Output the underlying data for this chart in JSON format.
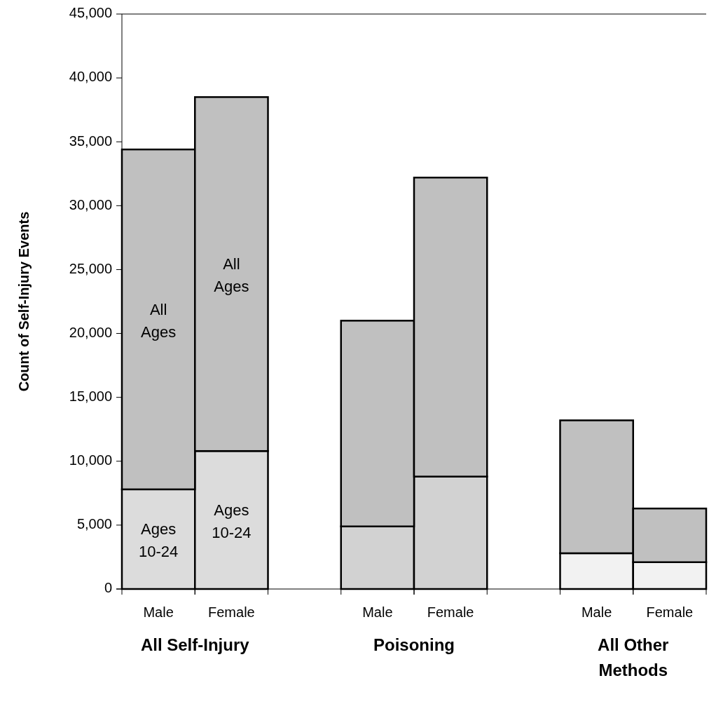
{
  "chart_data": {
    "type": "bar",
    "stacked": true,
    "ylabel": "Count of Self-Injury Events",
    "categories": [
      "Male",
      "Female",
      "Male",
      "Female",
      "Male",
      "Female"
    ],
    "series": [
      {
        "name": "Ages 10-24",
        "colors": [
          "#dcdcdc",
          "#dcdcdc",
          "#d2d2d2",
          "#d2d2d2",
          "#f2f2f2",
          "#f2f2f2"
        ],
        "values": [
          7800,
          10800,
          4900,
          8800,
          2800,
          2100
        ]
      },
      {
        "name": "All Ages",
        "color": "#c0c0c0",
        "values": [
          26600,
          27700,
          16100,
          23400,
          10400,
          4200
        ]
      }
    ],
    "ylim": [
      0,
      45000
    ],
    "yticks": [
      {
        "value": 0,
        "label": "0"
      },
      {
        "value": 5000,
        "label": "5,000"
      },
      {
        "value": 10000,
        "label": "10,000"
      },
      {
        "value": 15000,
        "label": "15,000"
      },
      {
        "value": 20000,
        "label": "20,000"
      },
      {
        "value": 25000,
        "label": "25,000"
      },
      {
        "value": 30000,
        "label": "30,000"
      },
      {
        "value": 35000,
        "label": "35,000"
      },
      {
        "value": 40000,
        "label": "40,000"
      },
      {
        "value": 45000,
        "label": "45,000"
      }
    ],
    "annotations": [
      "All Self-Injury",
      "Poisoning",
      "All Other Methods"
    ],
    "grid": false
  }
}
